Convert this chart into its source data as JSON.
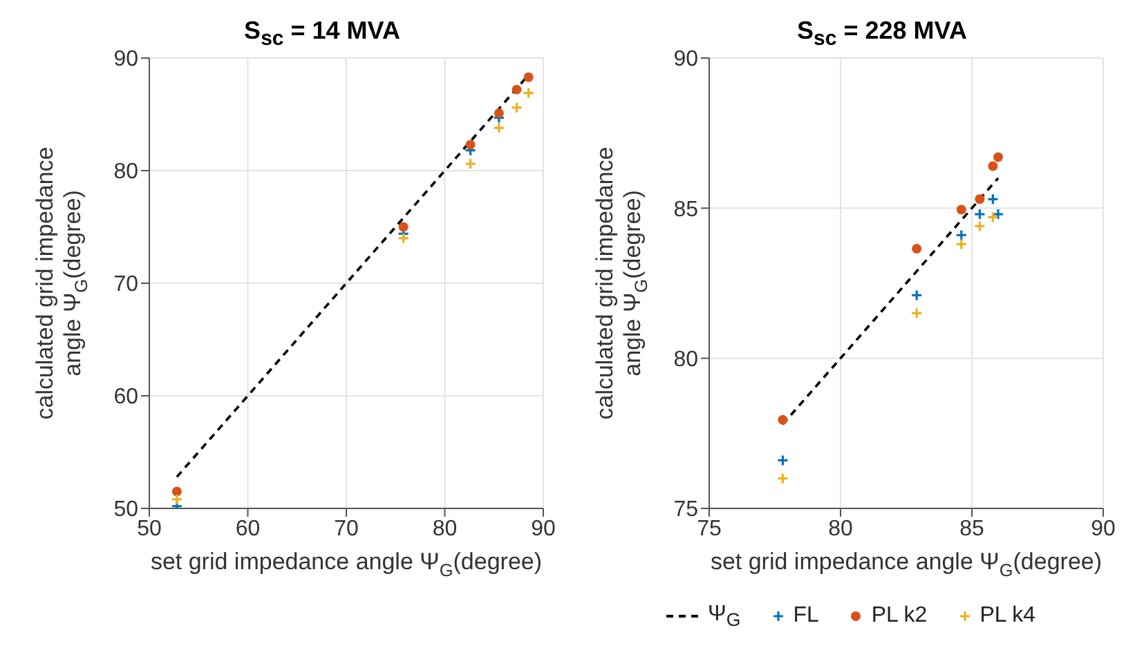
{
  "chart_data": [
    {
      "type": "scatter",
      "title": "S$_{sc}$ = 14 MVA",
      "xlabel": "set grid impedance angle Ψ$_{G}$(degree)",
      "ylabel": "calculated grid impedance angle Ψ$_{G}$(degree)",
      "xlim": [
        50,
        90
      ],
      "xticks": [
        50,
        60,
        70,
        80,
        90
      ],
      "ylim": [
        50,
        90
      ],
      "yticks": [
        50,
        60,
        70,
        80,
        90
      ],
      "grid": true,
      "legend": false,
      "series": [
        {
          "type": "line",
          "color": "#000000",
          "line_style": "dashed",
          "marker": "none",
          "x": [
            52.8,
            88.5
          ],
          "values": [
            52.8,
            88.5
          ]
        },
        {
          "color": "#0072bd",
          "marker": "cross",
          "x": [
            52.8,
            75.8,
            82.6,
            85.5
          ],
          "values": [
            50.2,
            74.4,
            81.8,
            84.7
          ]
        },
        {
          "color": "#d95319",
          "marker": "circle",
          "x": [
            52.8,
            75.8,
            82.6,
            85.5,
            87.3,
            88.5
          ],
          "values": [
            51.5,
            75.0,
            82.3,
            85.1,
            87.2,
            88.3
          ]
        },
        {
          "color": "#edb120",
          "marker": "cross",
          "x": [
            52.8,
            75.8,
            82.6,
            85.5,
            87.3,
            88.5
          ],
          "values": [
            50.8,
            74.0,
            80.6,
            83.8,
            85.6,
            86.9
          ]
        }
      ]
    },
    {
      "type": "scatter",
      "title": "S$_{sc}$ = 228 MVA",
      "xlabel": "set grid impedance angle Ψ$_{G}$(degree)",
      "ylabel": "calculated grid impedance angle Ψ$_{G}$(degree)",
      "xlim": [
        75,
        90
      ],
      "xticks": [
        75,
        80,
        85,
        90
      ],
      "ylim": [
        75,
        90
      ],
      "yticks": [
        75,
        80,
        85,
        90
      ],
      "grid": true,
      "legend": "bottom",
      "series": [
        {
          "name": "Ψ$_{G}$",
          "type": "line",
          "color": "#000000",
          "line_style": "dashed",
          "marker": "none",
          "x": [
            77.8,
            86.0
          ],
          "values": [
            77.8,
            86.0
          ]
        },
        {
          "name": "FL",
          "color": "#0072bd",
          "marker": "cross",
          "x": [
            77.8,
            82.9,
            84.6,
            85.3,
            85.8,
            86.0
          ],
          "values": [
            76.6,
            82.1,
            84.1,
            84.8,
            85.3,
            84.8
          ]
        },
        {
          "name": "PL k2",
          "color": "#d95319",
          "marker": "circle",
          "x": [
            77.8,
            82.9,
            84.6,
            85.3,
            85.8,
            86.0
          ],
          "values": [
            77.95,
            83.65,
            84.95,
            85.3,
            86.4,
            86.7
          ]
        },
        {
          "name": "PL k4",
          "color": "#edb120",
          "marker": "cross",
          "x": [
            77.8,
            82.9,
            84.6,
            85.3,
            85.8
          ],
          "values": [
            76.0,
            81.5,
            83.8,
            84.4,
            84.7
          ]
        }
      ]
    }
  ]
}
